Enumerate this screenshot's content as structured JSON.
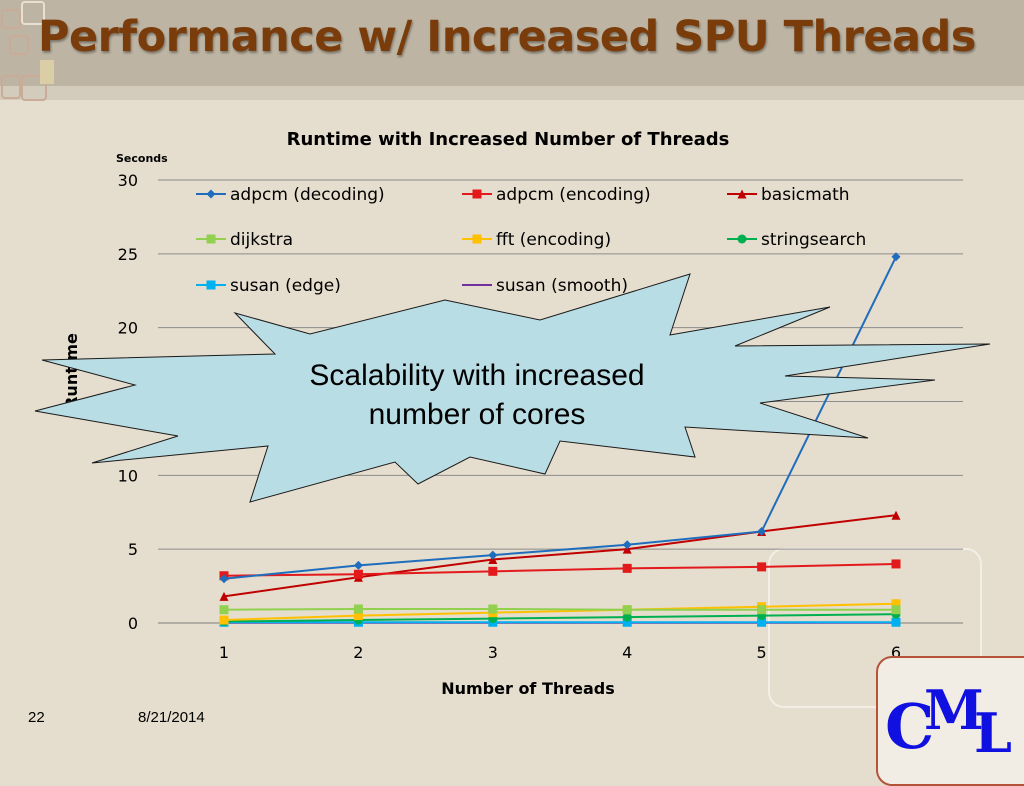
{
  "slide": {
    "title": "Performance w/ Increased SPU Threads",
    "page_number": "22",
    "date": "8/21/2014",
    "logo": "CML"
  },
  "callout": {
    "line1": "Scalability with increased",
    "line2": "number of cores",
    "fill": "#b9dde4"
  },
  "chart_data": {
    "type": "line",
    "title": "Runtime with Increased Number of Threads",
    "ylabel": "Runtime",
    "yunit": "Seconds",
    "xlabel": "Number of Threads",
    "x": [
      1,
      2,
      3,
      4,
      5,
      6
    ],
    "x_tick_labels": [
      "1",
      "2",
      "3",
      "4",
      "5",
      "6"
    ],
    "ylim": [
      0,
      30
    ],
    "y_ticks": [
      0,
      5,
      10,
      15,
      20,
      25,
      30
    ],
    "y_tick_labels": [
      "0",
      "5",
      "10",
      "15",
      "20",
      "25",
      "30"
    ],
    "grid": true,
    "legend_position": "top",
    "series": [
      {
        "name": "adpcm (decoding)",
        "color": "#1f6dbd",
        "marker": "diamond",
        "values": [
          3.0,
          3.9,
          4.6,
          5.3,
          6.2,
          24.8
        ]
      },
      {
        "name": "adpcm (encoding)",
        "color": "#e31a1c",
        "marker": "square",
        "values": [
          3.2,
          3.3,
          3.5,
          3.7,
          3.8,
          4.0
        ]
      },
      {
        "name": "basicmath",
        "color": "#c00000",
        "marker": "triangle",
        "values": [
          1.8,
          3.1,
          4.3,
          5.0,
          6.2,
          7.3
        ]
      },
      {
        "name": "dijkstra",
        "color": "#92d050",
        "marker": "square",
        "values": [
          0.9,
          0.95,
          0.95,
          0.9,
          0.9,
          0.9
        ]
      },
      {
        "name": "fft (encoding)",
        "color": "#ffc000",
        "marker": "square",
        "values": [
          0.2,
          0.5,
          0.7,
          0.9,
          1.1,
          1.3
        ]
      },
      {
        "name": "stringsearch",
        "color": "#00b050",
        "marker": "circle",
        "values": [
          0.1,
          0.2,
          0.3,
          0.4,
          0.5,
          0.6
        ]
      },
      {
        "name": "susan (edge)",
        "color": "#00b0f0",
        "marker": "square",
        "values": [
          0.05,
          0.05,
          0.05,
          0.05,
          0.05,
          0.05
        ]
      },
      {
        "name": "susan (smooth)",
        "color": "#7030a0",
        "marker": "dash",
        "values": [
          0.02,
          0.02,
          0.02,
          0.02,
          0.02,
          0.02
        ]
      }
    ]
  }
}
